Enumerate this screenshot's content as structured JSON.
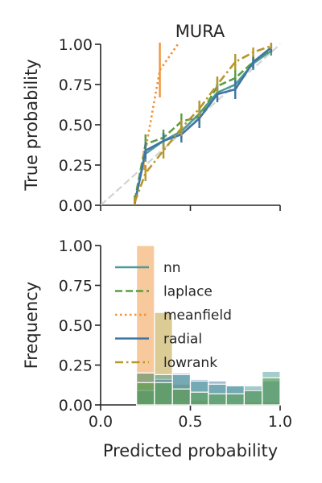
{
  "chart_data": [
    {
      "type": "line",
      "title": "MURA",
      "xlabel": "",
      "ylabel": "True probability",
      "xlim": [
        0,
        1
      ],
      "ylim": [
        0,
        1
      ],
      "xticks": [
        0.0,
        0.5,
        1.0
      ],
      "xtick_labels": [
        "",
        "",
        ""
      ],
      "yticks": [
        0.0,
        0.25,
        0.5,
        0.75,
        1.0
      ],
      "ytick_labels": [
        "0.00",
        "0.25",
        "0.50",
        "0.75",
        "1.00"
      ],
      "grid": false,
      "reference_line": {
        "x": [
          0,
          1
        ],
        "y": [
          0,
          1
        ],
        "color": "#d3d3d3",
        "style": "dashed"
      },
      "series": [
        {
          "name": "nn",
          "color": "#4b9a9a",
          "style": "solid",
          "x": [
            0.19,
            0.25,
            0.35,
            0.45,
            0.55,
            0.65,
            0.75,
            0.85,
            0.95
          ],
          "y": [
            0.02,
            0.32,
            0.4,
            0.46,
            0.57,
            0.7,
            0.75,
            0.88,
            0.96
          ],
          "err": [
            0.03,
            0.05,
            0.05,
            0.05,
            0.05,
            0.05,
            0.05,
            0.04,
            0.03
          ]
        },
        {
          "name": "laplace",
          "color": "#5a9e42",
          "style": "dashed",
          "x": [
            0.19,
            0.25,
            0.35,
            0.45,
            0.55,
            0.65,
            0.75,
            0.85,
            0.95
          ],
          "y": [
            0.03,
            0.38,
            0.42,
            0.52,
            0.55,
            0.74,
            0.79,
            0.89,
            0.97
          ],
          "err": [
            0.03,
            0.06,
            0.05,
            0.05,
            0.05,
            0.05,
            0.05,
            0.04,
            0.03
          ]
        },
        {
          "name": "meanfield",
          "color": "#f0943a",
          "style": "dotted",
          "x": [
            0.24,
            0.33,
            0.43
          ],
          "y": [
            0.28,
            0.84,
            1.0
          ],
          "err": [
            0.06,
            0.17,
            0.0
          ]
        },
        {
          "name": "radial",
          "color": "#3f76a4",
          "style": "solid",
          "x": [
            0.19,
            0.25,
            0.35,
            0.45,
            0.55,
            0.65,
            0.75,
            0.85,
            0.95
          ],
          "y": [
            0.01,
            0.34,
            0.4,
            0.44,
            0.54,
            0.69,
            0.72,
            0.89,
            0.98
          ],
          "err": [
            0.03,
            0.05,
            0.05,
            0.05,
            0.06,
            0.05,
            0.06,
            0.04,
            0.03
          ]
        },
        {
          "name": "lowrank",
          "color": "#b8972a",
          "style": "dashdot",
          "x": [
            0.19,
            0.25,
            0.35,
            0.45,
            0.55,
            0.65,
            0.75,
            0.85,
            0.95
          ],
          "y": [
            0.02,
            0.2,
            0.34,
            0.48,
            0.6,
            0.75,
            0.89,
            0.95,
            0.99
          ],
          "err": [
            0.03,
            0.05,
            0.05,
            0.05,
            0.05,
            0.05,
            0.05,
            0.03,
            0.02
          ]
        }
      ]
    },
    {
      "type": "bar",
      "title": "",
      "xlabel": "Predicted probability",
      "ylabel": "Frequency",
      "xlim": [
        0,
        1
      ],
      "ylim": [
        0,
        1
      ],
      "xticks": [
        0.0,
        0.5,
        1.0
      ],
      "xtick_labels": [
        "0.0",
        "0.5",
        "1.0"
      ],
      "yticks": [
        0.0,
        0.25,
        0.5,
        0.75,
        1.0
      ],
      "ytick_labels": [
        "0.00",
        "0.25",
        "0.50",
        "0.75",
        "1.00"
      ],
      "legend": {
        "position": "upper-left"
      },
      "grid": false,
      "bin_edges": [
        0.2,
        0.3,
        0.4,
        0.5,
        0.6,
        0.7,
        0.8,
        0.9,
        1.0
      ],
      "series": [
        {
          "name": "nn",
          "color": "#4b9a9a",
          "values": [
            0.2,
            0.19,
            0.19,
            0.15,
            0.13,
            0.12,
            0.12,
            0.21
          ]
        },
        {
          "name": "laplace",
          "color": "#5a9e42",
          "values": [
            0.14,
            0.14,
            0.1,
            0.08,
            0.07,
            0.07,
            0.09,
            0.17
          ]
        },
        {
          "name": "meanfield",
          "color": "#f0943a",
          "values": [
            1.0,
            0.01,
            0.0,
            0.0,
            0.0,
            0.0,
            0.0,
            0.0
          ]
        },
        {
          "name": "radial",
          "color": "#3f76a4",
          "values": [
            0.09,
            0.16,
            0.2,
            0.16,
            0.15,
            0.12,
            0.1,
            0.15
          ]
        },
        {
          "name": "lowrank",
          "color": "#b8972a",
          "values": [
            0.2,
            0.58,
            0.13,
            0.03,
            0.01,
            0.01,
            0.02,
            0.02
          ]
        }
      ]
    }
  ]
}
